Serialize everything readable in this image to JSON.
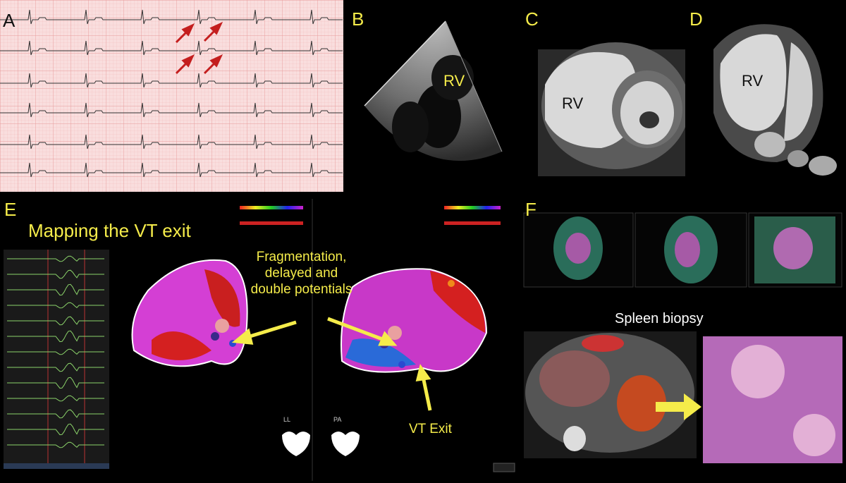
{
  "panels": {
    "a": {
      "label": "A"
    },
    "b": {
      "label": "B",
      "rv_label": "RV"
    },
    "c": {
      "label": "C",
      "rv_label": "RV"
    },
    "d": {
      "label": "D",
      "rv_label": "RV"
    },
    "e": {
      "label": "E",
      "title": "Mapping the VT exit",
      "annotation": "Fragmentation,\ndelayed  and\ndouble potentials",
      "vt_exit": "VT Exit",
      "view_ll": "LL",
      "view_pa": "PA"
    },
    "f": {
      "label": "F",
      "spleen_title": "Spleen biopsy"
    }
  },
  "colors": {
    "label_yellow": "#f5ec4a",
    "ecg_background": "#f9dede",
    "arrow_red": "#c41e1e"
  }
}
